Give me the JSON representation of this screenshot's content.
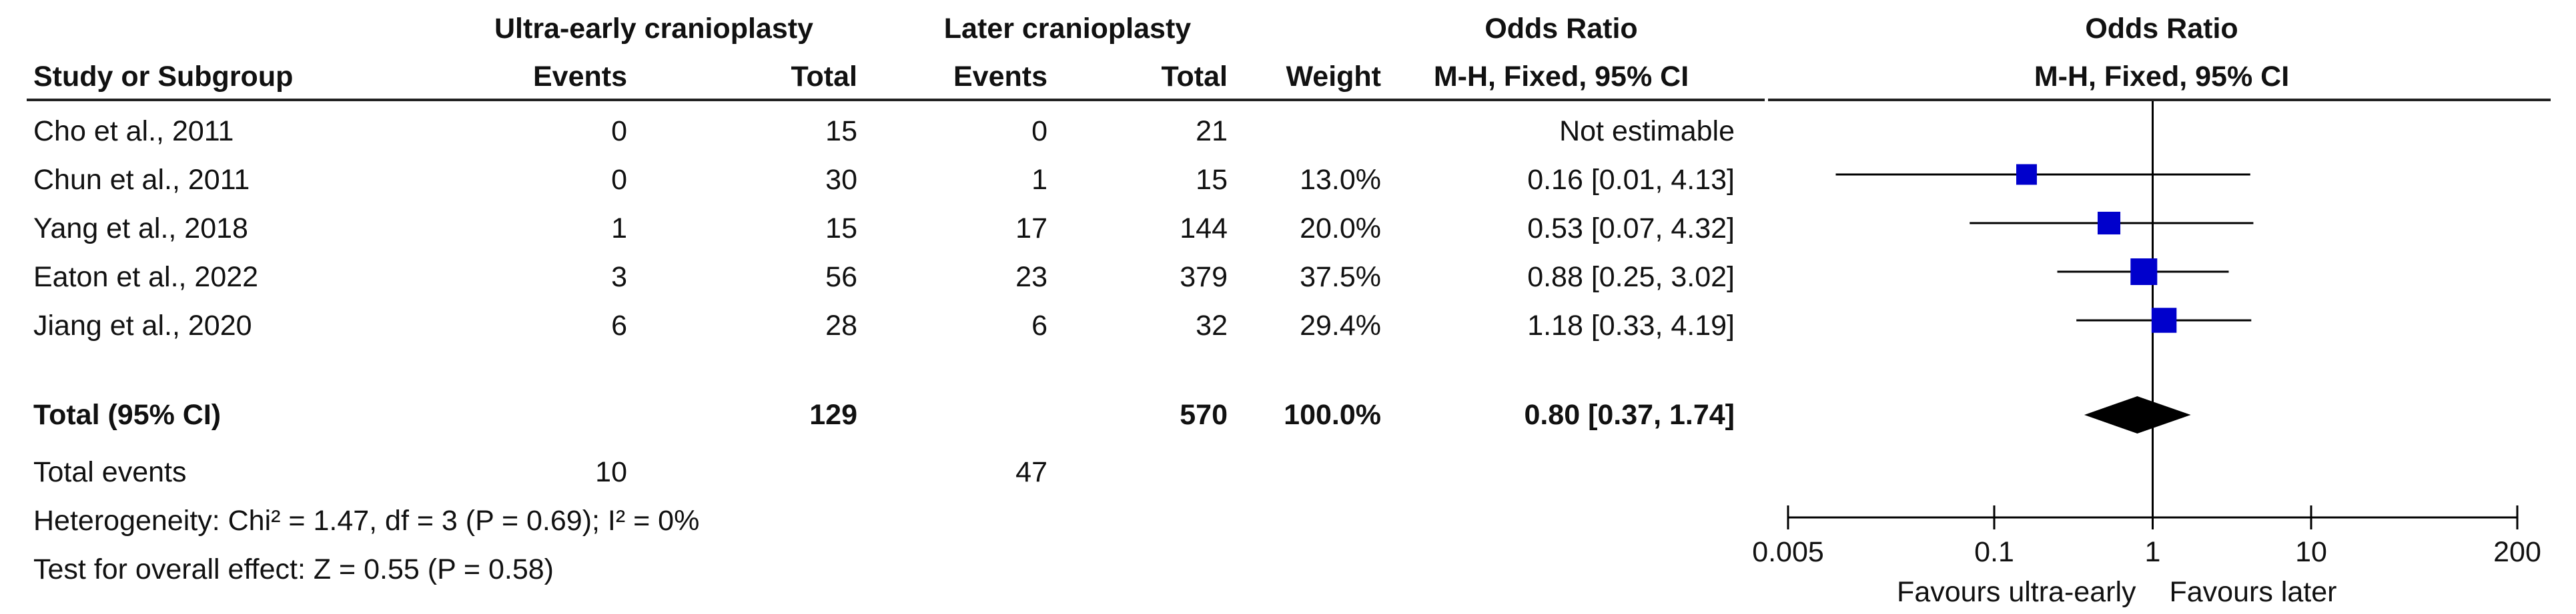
{
  "header": {
    "group1": "Ultra-early cranioplasty",
    "group2": "Later cranioplasty",
    "or_title": "Odds Ratio",
    "or_method": "M-H, Fixed, 95% CI",
    "plot_title": "Odds Ratio",
    "plot_method": "M-H, Fixed, 95% CI",
    "col_study": "Study or Subgroup",
    "col_events1": "Events",
    "col_total1": "Total",
    "col_events2": "Events",
    "col_total2": "Total",
    "col_weight": "Weight"
  },
  "rows": [
    {
      "study": "Cho et al., 2011",
      "e1": "0",
      "t1": "15",
      "e2": "0",
      "t2": "21",
      "weight": "",
      "ci": "Not estimable"
    },
    {
      "study": "Chun et al., 2011",
      "e1": "0",
      "t1": "30",
      "e2": "1",
      "t2": "15",
      "weight": "13.0%",
      "ci": "0.16 [0.01, 4.13]"
    },
    {
      "study": "Yang et al., 2018",
      "e1": "1",
      "t1": "15",
      "e2": "17",
      "t2": "144",
      "weight": "20.0%",
      "ci": "0.53 [0.07, 4.32]"
    },
    {
      "study": "Eaton et al., 2022",
      "e1": "3",
      "t1": "56",
      "e2": "23",
      "t2": "379",
      "weight": "37.5%",
      "ci": "0.88 [0.25, 3.02]"
    },
    {
      "study": "Jiang et al., 2020",
      "e1": "6",
      "t1": "28",
      "e2": "6",
      "t2": "32",
      "weight": "29.4%",
      "ci": "1.18 [0.33, 4.19]"
    }
  ],
  "total": {
    "label": "Total (95% CI)",
    "t1": "129",
    "t2": "570",
    "weight": "100.0%",
    "ci": "0.80 [0.37, 1.74]"
  },
  "total_events": {
    "label": "Total events",
    "e1": "10",
    "e2": "47"
  },
  "footer": {
    "heterogeneity": "Heterogeneity: Chi² = 1.47, df = 3 (P = 0.69); I² = 0%",
    "overall": "Test for overall effect: Z = 0.55 (P = 0.58)"
  },
  "axis": {
    "ticks": [
      "0.005",
      "0.1",
      "1",
      "10",
      "200"
    ],
    "favours_left": "Favours ultra-early",
    "favours_right": "Favours later"
  },
  "colors": {
    "square": "#0000cc",
    "diamond": "#000000",
    "line": "#000000"
  },
  "chart_data": {
    "type": "scatter",
    "title": "Odds Ratio",
    "scale": "log",
    "xlim": [
      0.005,
      200
    ],
    "x_ticks": [
      0.005,
      0.1,
      1,
      10,
      200
    ],
    "studies": [
      {
        "name": "Chun et al., 2011",
        "or": 0.16,
        "lo": 0.01,
        "hi": 4.13,
        "weight": 13.0
      },
      {
        "name": "Yang et al., 2018",
        "or": 0.53,
        "lo": 0.07,
        "hi": 4.32,
        "weight": 20.0
      },
      {
        "name": "Eaton et al., 2022",
        "or": 0.88,
        "lo": 0.25,
        "hi": 3.02,
        "weight": 37.5
      },
      {
        "name": "Jiang et al., 2020",
        "or": 1.18,
        "lo": 0.33,
        "hi": 4.19,
        "weight": 29.4
      }
    ],
    "pooled": {
      "or": 0.8,
      "lo": 0.37,
      "hi": 1.74
    }
  }
}
